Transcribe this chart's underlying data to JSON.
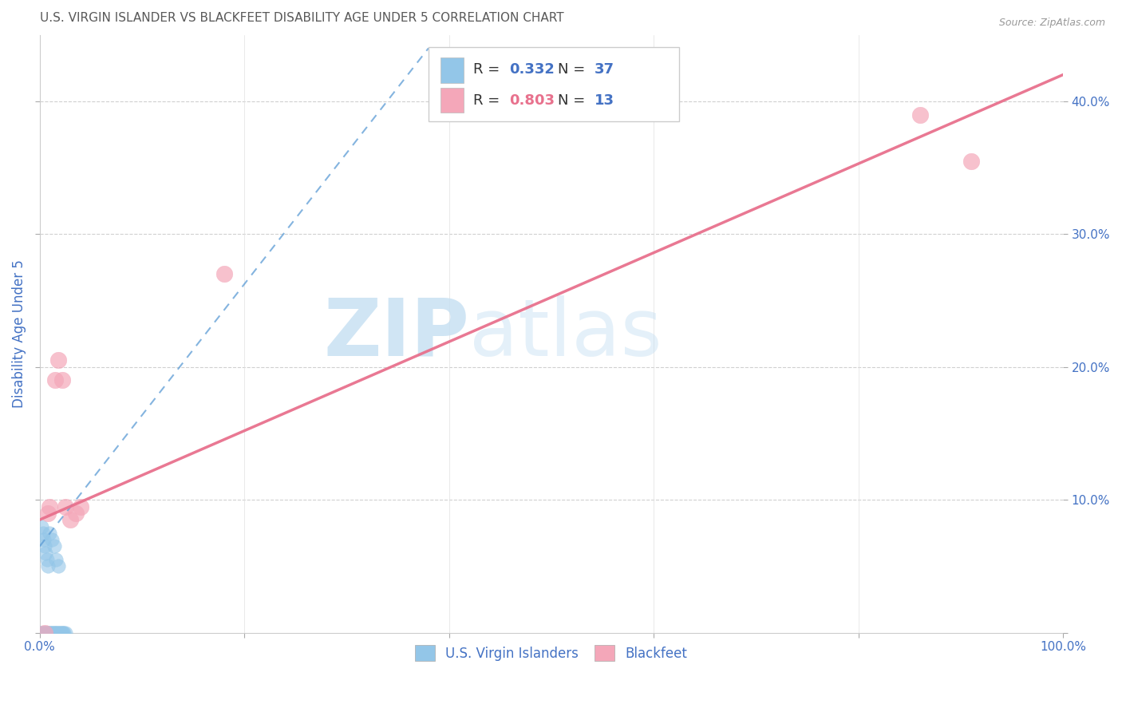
{
  "title": "U.S. VIRGIN ISLANDER VS BLACKFEET DISABILITY AGE UNDER 5 CORRELATION CHART",
  "source": "Source: ZipAtlas.com",
  "ylabel": "Disability Age Under 5",
  "xlim": [
    0.0,
    1.0
  ],
  "ylim": [
    0.0,
    0.45
  ],
  "xticks": [
    0.0,
    0.2,
    0.4,
    0.6,
    0.8,
    1.0
  ],
  "xtick_labels": [
    "0.0%",
    "",
    "",
    "",
    "",
    "100.0%"
  ],
  "yticks": [
    0.0,
    0.1,
    0.2,
    0.3,
    0.4
  ],
  "ytick_labels_right": [
    "",
    "10.0%",
    "20.0%",
    "30.0%",
    "40.0%"
  ],
  "legend1_R": "0.332",
  "legend1_N": "37",
  "legend2_R": "0.803",
  "legend2_N": "13",
  "legend_bottom_label1": "U.S. Virgin Islanders",
  "legend_bottom_label2": "Blackfeet",
  "watermark_zip": "ZIP",
  "watermark_atlas": "atlas",
  "blue_color": "#93c6e8",
  "pink_color": "#f4a7b9",
  "blue_line_color": "#5b9bd5",
  "pink_line_color": "#e8718d",
  "title_color": "#595959",
  "axis_color": "#4472c4",
  "blue_scatter_x": [
    0.001,
    0.002,
    0.003,
    0.004,
    0.005,
    0.006,
    0.007,
    0.008,
    0.009,
    0.01,
    0.011,
    0.012,
    0.013,
    0.014,
    0.015,
    0.016,
    0.017,
    0.018,
    0.019,
    0.02,
    0.021,
    0.022,
    0.023,
    0.024,
    0.025,
    0.002,
    0.003,
    0.004,
    0.005,
    0.006,
    0.007,
    0.008,
    0.01,
    0.012,
    0.014,
    0.016,
    0.018
  ],
  "blue_scatter_y": [
    0.0,
    0.0,
    0.0,
    0.0,
    0.0,
    0.0,
    0.0,
    0.0,
    0.0,
    0.0,
    0.0,
    0.0,
    0.0,
    0.0,
    0.0,
    0.0,
    0.0,
    0.0,
    0.0,
    0.0,
    0.0,
    0.0,
    0.0,
    0.0,
    0.0,
    0.08,
    0.075,
    0.07,
    0.065,
    0.06,
    0.055,
    0.05,
    0.075,
    0.07,
    0.065,
    0.055,
    0.05
  ],
  "pink_scatter_x": [
    0.005,
    0.008,
    0.01,
    0.015,
    0.018,
    0.022,
    0.025,
    0.03,
    0.035,
    0.04,
    0.18,
    0.86,
    0.91
  ],
  "pink_scatter_y": [
    0.0,
    0.09,
    0.095,
    0.19,
    0.205,
    0.19,
    0.095,
    0.085,
    0.09,
    0.095,
    0.27,
    0.39,
    0.355
  ],
  "blue_trendline_x": [
    0.0,
    0.38
  ],
  "blue_trendline_y": [
    0.065,
    0.44
  ],
  "pink_trendline_x": [
    0.0,
    1.0
  ],
  "pink_trendline_y": [
    0.085,
    0.42
  ]
}
